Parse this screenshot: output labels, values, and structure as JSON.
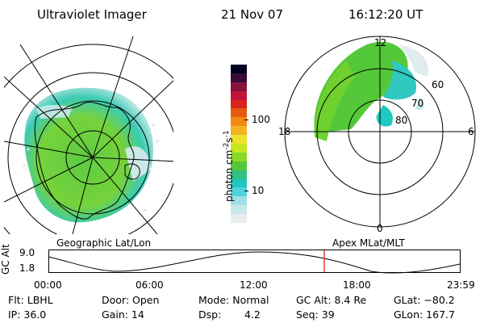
{
  "header": {
    "instrument": "Ultraviolet Imager",
    "date": "21 Nov 07",
    "time": "16:12:20 UT"
  },
  "geo_panel": {
    "label": "Geographic Lat/Lon"
  },
  "mag_panel": {
    "label": "Apex MLat/MLT",
    "mlt_labels": [
      "12",
      "18",
      "6",
      "0"
    ],
    "mlat_labels": [
      "60",
      "70",
      "80"
    ]
  },
  "colorbar": {
    "unit_text": "photon cm",
    "unit_exp1": "-2",
    "unit_s": "s",
    "unit_exp2": "-1",
    "tick_labels": [
      "100",
      "10"
    ],
    "colors": [
      "#e8eef0",
      "#c8e8e8",
      "#9edfe6",
      "#4fd2e0",
      "#20c8c0",
      "#30c080",
      "#55c83a",
      "#8ad829",
      "#c8e61f",
      "#f0e02a",
      "#f4b322",
      "#f08a12",
      "#e85a10",
      "#d8241a",
      "#c0143a",
      "#8a1040",
      "#3a0a3a",
      "#000020"
    ]
  },
  "altitude_plot": {
    "axis_label": "GC Alt",
    "y_ticks": [
      "9.0",
      "1.8"
    ],
    "x_ticks": [
      "00:00",
      "06:00",
      "12:00",
      "18:00",
      "23:59"
    ],
    "current_time_marker_color": "#e02020"
  },
  "footer": {
    "flt": "Flt: LBHL",
    "ip": "IP: 36.0",
    "door": "Door: Open",
    "gain": "Gain: 14",
    "mode": "Mode: Normal",
    "dsp_label": "Dsp:",
    "dsp_value": "4.2",
    "gc_alt": "GC Alt: 8.4 Re",
    "seq": "Seq: 39",
    "glat": "GLat: −80.2",
    "glon": "GLon: 167.7"
  }
}
